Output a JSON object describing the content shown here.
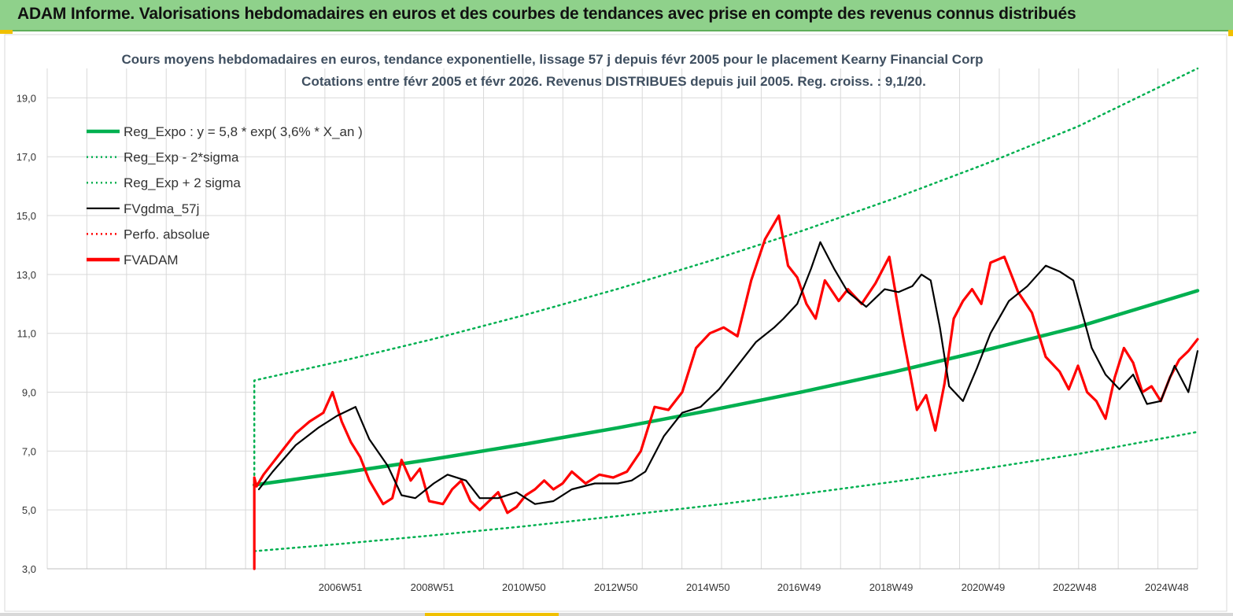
{
  "banner": {
    "title": "ADAM Informe. Valorisations hebdomadaires en euros et des courbes de tendances avec prise en compte des revenus connus distribués"
  },
  "colors": {
    "banner_bg": "#8fd18b",
    "reg_expo": "#00b050",
    "fvgdma": "#000000",
    "fvadam": "#ff0000",
    "perfo": "#ff0000"
  },
  "chart_data": {
    "type": "line",
    "title": [
      "Cours moyens hebdomadaires en euros, tendance exponentielle, lissage 57 j depuis févr 2005 pour le placement Kearny Financial Corp",
      "Cotations entre févr 2005 et févr 2026. Revenus DISTRIBUES depuis juil 2005. Reg. croiss. : 9,1/20."
    ],
    "x_unit": "year",
    "xlim": [
      2000.6,
      2025.6
    ],
    "ylim": [
      3.0,
      20.0
    ],
    "y_ticks": [
      "3,0",
      "5,0",
      "7,0",
      "9,0",
      "11,0",
      "13,0",
      "15,0",
      "17,0",
      "19,0"
    ],
    "y_tick_values": [
      3,
      5,
      7,
      9,
      11,
      13,
      15,
      17,
      19
    ],
    "x_ticks": [
      "2006W51",
      "2008W51",
      "2010W50",
      "2012W50",
      "2014W50",
      "2016W49",
      "2018W49",
      "2020W49",
      "2022W48",
      "2024W48"
    ],
    "x_tick_values": [
      2006.97,
      2008.97,
      2010.96,
      2012.96,
      2014.96,
      2016.94,
      2018.94,
      2020.94,
      2022.93,
      2024.93
    ],
    "legend": {
      "placement": "top-left"
    },
    "grid": true,
    "series": [
      {
        "name": "Reg_Expo : y = 5,8 * exp( 3,6% *  X_an )",
        "style": "solid-thick",
        "color": "#00b050",
        "x": [
          2005.1,
          2007,
          2009,
          2011,
          2013,
          2015,
          2017,
          2019,
          2021,
          2023,
          2025.6
        ],
        "y": [
          5.85,
          6.26,
          6.73,
          7.24,
          7.79,
          8.38,
          9.01,
          9.69,
          10.43,
          11.22,
          12.45
        ]
      },
      {
        "name": "Reg_Exp - 2*sigma",
        "style": "dotted",
        "color": "#00b050",
        "x": [
          2005.1,
          2007,
          2009,
          2011,
          2013,
          2015,
          2017,
          2019,
          2021,
          2023,
          2025.6
        ],
        "y": [
          3.6,
          3.85,
          4.14,
          4.45,
          4.79,
          5.15,
          5.54,
          5.96,
          6.41,
          6.9,
          7.65
        ]
      },
      {
        "name": "Reg_Exp + 2 sigma",
        "style": "dotted",
        "color": "#00b050",
        "x": [
          2005.1,
          2005.1,
          2007,
          2009,
          2011,
          2013,
          2015,
          2017,
          2019,
          2021,
          2023,
          2025.6
        ],
        "y": [
          6.0,
          9.4,
          10.06,
          10.81,
          11.63,
          12.51,
          13.46,
          14.48,
          15.58,
          16.76,
          18.03,
          20.0
        ]
      },
      {
        "name": "FVgdma_57j",
        "style": "solid",
        "color": "#000000",
        "x": [
          2005.2,
          2005.5,
          2006.0,
          2006.5,
          2006.9,
          2007.3,
          2007.6,
          2008.0,
          2008.3,
          2008.6,
          2009.0,
          2009.3,
          2009.7,
          2010.0,
          2010.4,
          2010.8,
          2011.2,
          2011.6,
          2012.0,
          2012.5,
          2013.0,
          2013.3,
          2013.6,
          2014.0,
          2014.4,
          2014.8,
          2015.2,
          2015.6,
          2016.0,
          2016.4,
          2016.6,
          2016.9,
          2017.2,
          2017.4,
          2017.7,
          2018.0,
          2018.4,
          2018.8,
          2019.1,
          2019.4,
          2019.6,
          2019.8,
          2020.0,
          2020.2,
          2020.5,
          2020.8,
          2021.1,
          2021.5,
          2021.9,
          2022.3,
          2022.6,
          2022.9,
          2023.3,
          2023.6,
          2023.9,
          2024.2,
          2024.5,
          2024.8,
          2025.1,
          2025.4,
          2025.6
        ],
        "y": [
          5.7,
          6.3,
          7.2,
          7.8,
          8.2,
          8.5,
          7.4,
          6.5,
          5.5,
          5.4,
          5.9,
          6.2,
          6.0,
          5.4,
          5.4,
          5.6,
          5.2,
          5.3,
          5.7,
          5.9,
          5.9,
          6.0,
          6.3,
          7.5,
          8.3,
          8.5,
          9.1,
          9.9,
          10.7,
          11.2,
          11.5,
          12.0,
          13.2,
          14.1,
          13.2,
          12.4,
          11.9,
          12.5,
          12.4,
          12.6,
          13.0,
          12.8,
          11.2,
          9.2,
          8.7,
          9.8,
          11.0,
          12.1,
          12.6,
          13.3,
          13.1,
          12.8,
          10.5,
          9.6,
          9.1,
          9.6,
          8.6,
          8.7,
          9.9,
          9.0,
          10.4
        ]
      },
      {
        "name": "Perfo. absolue",
        "style": "dotted",
        "color": "#ff0000",
        "x": [],
        "y": []
      },
      {
        "name": "FVADAM",
        "style": "solid-thick",
        "color": "#ff0000",
        "x": [
          2005.1,
          2005.1,
          2005.15,
          2005.3,
          2005.5,
          2005.7,
          2006.0,
          2006.3,
          2006.6,
          2006.8,
          2007.0,
          2007.2,
          2007.4,
          2007.6,
          2007.9,
          2008.1,
          2008.3,
          2008.5,
          2008.7,
          2008.9,
          2009.2,
          2009.4,
          2009.6,
          2009.8,
          2010.0,
          2010.2,
          2010.4,
          2010.6,
          2010.8,
          2011.0,
          2011.2,
          2011.4,
          2011.6,
          2011.8,
          2012.0,
          2012.3,
          2012.6,
          2012.9,
          2013.2,
          2013.5,
          2013.8,
          2014.1,
          2014.4,
          2014.7,
          2015.0,
          2015.3,
          2015.6,
          2015.9,
          2016.2,
          2016.5,
          2016.7,
          2016.9,
          2017.1,
          2017.3,
          2017.5,
          2017.8,
          2018.0,
          2018.3,
          2018.6,
          2018.9,
          2019.2,
          2019.5,
          2019.7,
          2019.9,
          2020.1,
          2020.3,
          2020.5,
          2020.7,
          2020.9,
          2021.1,
          2021.4,
          2021.7,
          2022.0,
          2022.3,
          2022.6,
          2022.8,
          2023.0,
          2023.2,
          2023.4,
          2023.6,
          2023.8,
          2024.0,
          2024.2,
          2024.4,
          2024.6,
          2024.8,
          2025.0,
          2025.2,
          2025.4,
          2025.6
        ],
        "y": [
          3.0,
          6.1,
          5.8,
          6.2,
          6.6,
          7.0,
          7.6,
          8.0,
          8.3,
          9.0,
          8.0,
          7.3,
          6.8,
          6.0,
          5.2,
          5.4,
          6.7,
          6.0,
          6.4,
          5.3,
          5.2,
          5.7,
          6.0,
          5.3,
          5.0,
          5.3,
          5.6,
          4.9,
          5.1,
          5.5,
          5.7,
          6.0,
          5.7,
          5.9,
          6.3,
          5.9,
          6.2,
          6.1,
          6.3,
          7.0,
          8.5,
          8.4,
          9.0,
          10.5,
          11.0,
          11.2,
          10.9,
          12.8,
          14.2,
          15.0,
          13.3,
          12.9,
          12.0,
          11.5,
          12.8,
          12.1,
          12.5,
          12.0,
          12.7,
          13.6,
          10.9,
          8.4,
          8.9,
          7.7,
          9.3,
          11.5,
          12.1,
          12.5,
          12.0,
          13.4,
          13.6,
          12.4,
          11.7,
          10.2,
          9.7,
          9.1,
          9.9,
          9.0,
          8.7,
          8.1,
          9.5,
          10.5,
          10.0,
          9.0,
          9.2,
          8.7,
          9.5,
          10.1,
          10.4,
          10.8
        ]
      }
    ]
  }
}
